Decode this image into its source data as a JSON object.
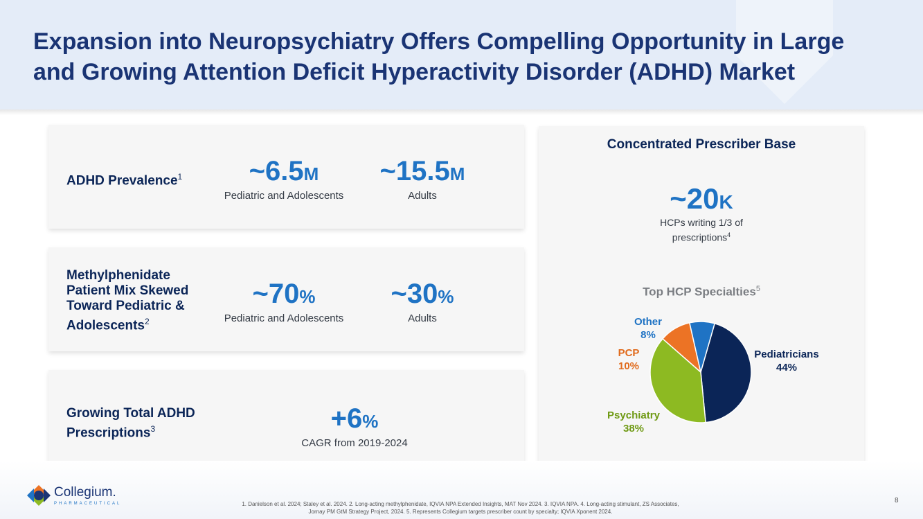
{
  "title": "Expansion into Neuropsychiatry Offers Compelling Opportunity in Large and Growing Attention Deficit Hyperactivity Disorder (ADHD) Market",
  "cards": [
    {
      "label": "ADHD Prevalence",
      "sup": "1",
      "stats": [
        {
          "prefix": "~",
          "value": "6.5",
          "unit": "M",
          "caption": "Pediatric and Adolescents"
        },
        {
          "prefix": "~",
          "value": "15.5",
          "unit": "M",
          "caption": "Adults"
        }
      ]
    },
    {
      "label_lines": [
        "Methylphenidate",
        "Patient Mix Skewed",
        "Toward Pediatric &",
        "Adolescents"
      ],
      "sup": "2",
      "stats": [
        {
          "prefix": "~",
          "value": "70",
          "unit": "%",
          "caption": "Pediatric and Adolescents"
        },
        {
          "prefix": "~",
          "value": "30",
          "unit": "%",
          "caption": "Adults"
        }
      ]
    },
    {
      "label_lines": [
        "Growing Total ADHD",
        "Prescriptions"
      ],
      "sup": "3",
      "stats": [
        {
          "prefix": "+",
          "value": "6",
          "unit": "%",
          "caption": "CAGR from 2019-2024"
        }
      ]
    }
  ],
  "prescriber": {
    "title": "Concentrated Prescriber Base",
    "prefix": "~",
    "value": "20",
    "unit": "K",
    "caption_line1": "HCPs writing 1/3 of",
    "caption_line2": "prescriptions",
    "caption_sup": "4",
    "specialties_title": "Top HCP Specialties",
    "specialties_sup": "5"
  },
  "chart_data": {
    "type": "pie",
    "title": "Top HCP Specialties",
    "categories": [
      "Pediatricians",
      "Psychiatry",
      "PCP",
      "Other"
    ],
    "values": [
      44,
      38,
      10,
      8
    ],
    "labels": [
      "44%",
      "38%",
      "10%",
      "8%"
    ],
    "colors": [
      "#0b2557",
      "#8dba22",
      "#ec7325",
      "#1f73c4"
    ],
    "label_colors": [
      "#0b2557",
      "#6f9a14",
      "#e06a1b",
      "#1f73c4"
    ]
  },
  "logo": {
    "name": "Collegium.",
    "sub": "PHARMACEUTICAL"
  },
  "footnote": {
    "line1": "1.  Danielson et al. 2024; Staley et al. 2024. 2. Long-acting methylphenidate, IQVIA NPA Extended Insights, MAT Nov 2024.  3. IQVIA NPA. 4. Long-acting stimulant, ZS Associates,",
    "line2": "Jornay PM GtM Strategy Project, 2024. 5. Represents Collegium targets prescriber count by specialty; IQVIA Xponent 2024."
  },
  "page_number": "8"
}
